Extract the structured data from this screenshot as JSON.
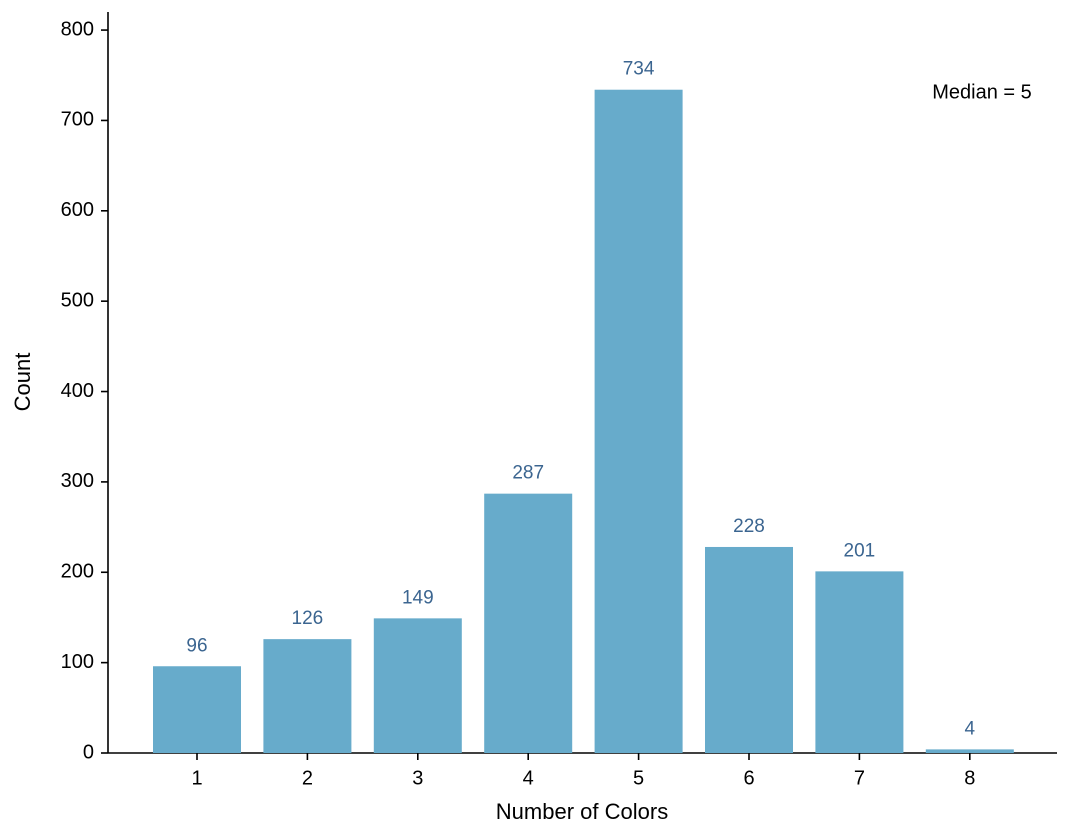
{
  "chart_data": {
    "type": "bar",
    "x_label": "Number of Colors",
    "y_label": "Count",
    "annotation": "Median = 5",
    "categories": [
      "1",
      "2",
      "3",
      "4",
      "5",
      "6",
      "7",
      "8"
    ],
    "values": [
      96,
      126,
      149,
      287,
      734,
      228,
      201,
      4
    ],
    "color": "#67abcb",
    "label_color": "#3b6590",
    "ylim": [
      0,
      820
    ],
    "yticks": [
      0,
      100,
      200,
      300,
      400,
      500,
      600,
      700,
      800
    ],
    "grid": false
  }
}
